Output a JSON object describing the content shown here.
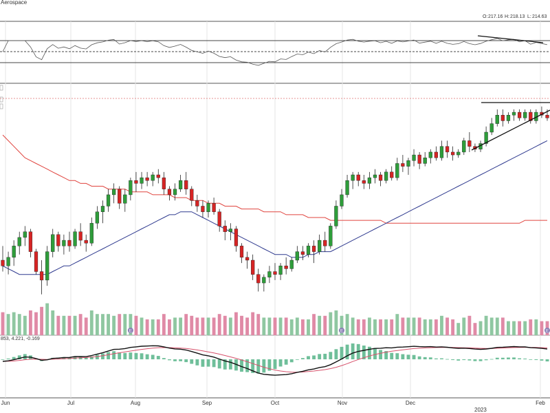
{
  "header": {
    "sector": "Aerospace",
    "ohlc": {
      "open_label": "O:",
      "open": "217.16",
      "high_label": "H:",
      "high": "218.13",
      "low_label": "L:",
      "low": "214.63"
    }
  },
  "macd_readout": "853, 4.221, -0.169",
  "earnings_marker": "E",
  "x_axis": {
    "months": [
      "Jun",
      "Jul",
      "Aug",
      "Sep",
      "Oct",
      "Nov",
      "Dec",
      "Feb"
    ],
    "year": "2023"
  },
  "colors": {
    "up": "#2e9d3a",
    "down": "#d62424",
    "sma50": "#2f3a8f",
    "sma200": "#e0443e",
    "macd": "#111111",
    "signal": "#d6506a",
    "hist": "#6fbf9a",
    "vol_up": "#8fc7a1",
    "vol_down": "#e08aa6"
  },
  "chart_data": {
    "type": "candlestick",
    "panels": [
      "rsi",
      "price",
      "volume",
      "macd"
    ],
    "price_ylim": [
      150,
      225
    ],
    "candles": [
      {
        "o": 165,
        "h": 170,
        "l": 161,
        "c": 163
      },
      {
        "o": 163,
        "h": 168,
        "l": 160,
        "c": 166
      },
      {
        "o": 166,
        "h": 172,
        "l": 163,
        "c": 170
      },
      {
        "o": 170,
        "h": 175,
        "l": 167,
        "c": 173
      },
      {
        "o": 173,
        "h": 177,
        "l": 170,
        "c": 175
      },
      {
        "o": 175,
        "h": 176,
        "l": 166,
        "c": 168
      },
      {
        "o": 168,
        "h": 169,
        "l": 160,
        "c": 161
      },
      {
        "o": 161,
        "h": 165,
        "l": 153,
        "c": 158
      },
      {
        "o": 158,
        "h": 170,
        "l": 156,
        "c": 168
      },
      {
        "o": 168,
        "h": 176,
        "l": 166,
        "c": 174
      },
      {
        "o": 174,
        "h": 175,
        "l": 168,
        "c": 170
      },
      {
        "o": 170,
        "h": 174,
        "l": 167,
        "c": 172
      },
      {
        "o": 172,
        "h": 175,
        "l": 168,
        "c": 170
      },
      {
        "o": 170,
        "h": 176,
        "l": 169,
        "c": 175
      },
      {
        "o": 175,
        "h": 178,
        "l": 170,
        "c": 172
      },
      {
        "o": 172,
        "h": 174,
        "l": 168,
        "c": 171
      },
      {
        "o": 171,
        "h": 180,
        "l": 170,
        "c": 178
      },
      {
        "o": 178,
        "h": 184,
        "l": 176,
        "c": 182
      },
      {
        "o": 182,
        "h": 186,
        "l": 178,
        "c": 184
      },
      {
        "o": 184,
        "h": 190,
        "l": 182,
        "c": 188
      },
      {
        "o": 188,
        "h": 192,
        "l": 185,
        "c": 190
      },
      {
        "o": 190,
        "h": 191,
        "l": 183,
        "c": 185
      },
      {
        "o": 185,
        "h": 190,
        "l": 182,
        "c": 188
      },
      {
        "o": 188,
        "h": 194,
        "l": 186,
        "c": 193
      },
      {
        "o": 193,
        "h": 196,
        "l": 189,
        "c": 192
      },
      {
        "o": 192,
        "h": 196,
        "l": 190,
        "c": 194
      },
      {
        "o": 194,
        "h": 196,
        "l": 191,
        "c": 193
      },
      {
        "o": 193,
        "h": 196,
        "l": 191,
        "c": 195
      },
      {
        "o": 195,
        "h": 197,
        "l": 192,
        "c": 194
      },
      {
        "o": 194,
        "h": 196,
        "l": 188,
        "c": 190
      },
      {
        "o": 190,
        "h": 191,
        "l": 186,
        "c": 188
      },
      {
        "o": 188,
        "h": 192,
        "l": 186,
        "c": 190
      },
      {
        "o": 190,
        "h": 195,
        "l": 189,
        "c": 193
      },
      {
        "o": 193,
        "h": 196,
        "l": 188,
        "c": 190
      },
      {
        "o": 190,
        "h": 191,
        "l": 184,
        "c": 186
      },
      {
        "o": 186,
        "h": 188,
        "l": 182,
        "c": 184
      },
      {
        "o": 184,
        "h": 186,
        "l": 180,
        "c": 182
      },
      {
        "o": 182,
        "h": 186,
        "l": 180,
        "c": 185
      },
      {
        "o": 185,
        "h": 187,
        "l": 181,
        "c": 182
      },
      {
        "o": 182,
        "h": 183,
        "l": 175,
        "c": 177
      },
      {
        "o": 177,
        "h": 179,
        "l": 172,
        "c": 175
      },
      {
        "o": 175,
        "h": 178,
        "l": 172,
        "c": 176
      },
      {
        "o": 176,
        "h": 177,
        "l": 168,
        "c": 170
      },
      {
        "o": 170,
        "h": 171,
        "l": 164,
        "c": 166
      },
      {
        "o": 166,
        "h": 168,
        "l": 162,
        "c": 165
      },
      {
        "o": 165,
        "h": 167,
        "l": 158,
        "c": 160
      },
      {
        "o": 160,
        "h": 162,
        "l": 154,
        "c": 157
      },
      {
        "o": 157,
        "h": 160,
        "l": 154,
        "c": 159
      },
      {
        "o": 159,
        "h": 163,
        "l": 157,
        "c": 161
      },
      {
        "o": 161,
        "h": 164,
        "l": 158,
        "c": 160
      },
      {
        "o": 160,
        "h": 164,
        "l": 158,
        "c": 163
      },
      {
        "o": 163,
        "h": 166,
        "l": 160,
        "c": 162
      },
      {
        "o": 162,
        "h": 166,
        "l": 161,
        "c": 165
      },
      {
        "o": 165,
        "h": 170,
        "l": 164,
        "c": 168
      },
      {
        "o": 168,
        "h": 170,
        "l": 165,
        "c": 167
      },
      {
        "o": 167,
        "h": 171,
        "l": 166,
        "c": 170
      },
      {
        "o": 170,
        "h": 172,
        "l": 164,
        "c": 168
      },
      {
        "o": 168,
        "h": 174,
        "l": 167,
        "c": 172
      },
      {
        "o": 172,
        "h": 175,
        "l": 168,
        "c": 170
      },
      {
        "o": 170,
        "h": 178,
        "l": 169,
        "c": 177
      },
      {
        "o": 177,
        "h": 186,
        "l": 176,
        "c": 184
      },
      {
        "o": 184,
        "h": 190,
        "l": 183,
        "c": 188
      },
      {
        "o": 188,
        "h": 195,
        "l": 187,
        "c": 193
      },
      {
        "o": 193,
        "h": 196,
        "l": 190,
        "c": 195
      },
      {
        "o": 195,
        "h": 196,
        "l": 191,
        "c": 193
      },
      {
        "o": 193,
        "h": 195,
        "l": 190,
        "c": 192
      },
      {
        "o": 192,
        "h": 196,
        "l": 190,
        "c": 194
      },
      {
        "o": 194,
        "h": 197,
        "l": 192,
        "c": 195
      },
      {
        "o": 195,
        "h": 196,
        "l": 191,
        "c": 193
      },
      {
        "o": 193,
        "h": 197,
        "l": 192,
        "c": 196
      },
      {
        "o": 196,
        "h": 198,
        "l": 193,
        "c": 194
      },
      {
        "o": 194,
        "h": 201,
        "l": 193,
        "c": 199
      },
      {
        "o": 199,
        "h": 202,
        "l": 196,
        "c": 198
      },
      {
        "o": 198,
        "h": 201,
        "l": 195,
        "c": 200
      },
      {
        "o": 200,
        "h": 204,
        "l": 198,
        "c": 202
      },
      {
        "o": 202,
        "h": 203,
        "l": 197,
        "c": 199
      },
      {
        "o": 199,
        "h": 203,
        "l": 198,
        "c": 201
      },
      {
        "o": 201,
        "h": 204,
        "l": 199,
        "c": 203
      },
      {
        "o": 203,
        "h": 205,
        "l": 200,
        "c": 201
      },
      {
        "o": 201,
        "h": 207,
        "l": 200,
        "c": 205
      },
      {
        "o": 205,
        "h": 207,
        "l": 201,
        "c": 203
      },
      {
        "o": 203,
        "h": 205,
        "l": 200,
        "c": 202
      },
      {
        "o": 202,
        "h": 204,
        "l": 201,
        "c": 203
      },
      {
        "o": 203,
        "h": 208,
        "l": 202,
        "c": 207
      },
      {
        "o": 207,
        "h": 210,
        "l": 203,
        "c": 205
      },
      {
        "o": 205,
        "h": 206,
        "l": 203,
        "c": 204
      },
      {
        "o": 204,
        "h": 207,
        "l": 203,
        "c": 206
      },
      {
        "o": 206,
        "h": 212,
        "l": 205,
        "c": 210
      },
      {
        "o": 210,
        "h": 215,
        "l": 209,
        "c": 213
      },
      {
        "o": 213,
        "h": 218,
        "l": 212,
        "c": 216
      },
      {
        "o": 216,
        "h": 218,
        "l": 212,
        "c": 214
      },
      {
        "o": 214,
        "h": 217,
        "l": 213,
        "c": 216
      },
      {
        "o": 216,
        "h": 218,
        "l": 214,
        "c": 217
      },
      {
        "o": 217,
        "h": 218,
        "l": 214,
        "c": 215
      },
      {
        "o": 215,
        "h": 218,
        "l": 214,
        "c": 217
      },
      {
        "o": 217,
        "h": 218,
        "l": 213,
        "c": 214
      },
      {
        "o": 214,
        "h": 218,
        "l": 213,
        "c": 217
      },
      {
        "o": 217,
        "h": 219,
        "l": 215,
        "c": 216
      },
      {
        "o": 216,
        "h": 218,
        "l": 214,
        "c": 215
      }
    ],
    "sma50": [
      163,
      162,
      161,
      160,
      160,
      160,
      160,
      160,
      160,
      161,
      162,
      163,
      163,
      164,
      165,
      166,
      167,
      168,
      169,
      170,
      171,
      172,
      173,
      174,
      175,
      176,
      177,
      178,
      179,
      180,
      181,
      181,
      182,
      182,
      182,
      181,
      180,
      179,
      178,
      177,
      176,
      175,
      174,
      173,
      172,
      171,
      170,
      169,
      168,
      167,
      167,
      167,
      166,
      166,
      166,
      167,
      167,
      168,
      168,
      168,
      169,
      170,
      171,
      172,
      173,
      174,
      175,
      176,
      177,
      178,
      179,
      180,
      181,
      182,
      183,
      184,
      185,
      186,
      187,
      188,
      189,
      190,
      191,
      192,
      193,
      194,
      195,
      196,
      197,
      198,
      199,
      200,
      201,
      202,
      203,
      204,
      205,
      206,
      207
    ],
    "sma200": [
      209,
      207,
      205,
      203,
      201,
      200,
      199,
      198,
      197,
      196,
      195,
      194,
      193,
      193,
      192,
      192,
      191,
      191,
      191,
      190,
      190,
      190,
      190,
      189,
      189,
      189,
      189,
      188,
      188,
      188,
      188,
      187,
      187,
      187,
      186,
      186,
      186,
      185,
      185,
      185,
      184,
      184,
      184,
      183,
      183,
      183,
      183,
      182,
      182,
      182,
      182,
      181,
      181,
      181,
      181,
      180,
      180,
      180,
      180,
      179,
      179,
      179,
      179,
      179,
      179,
      179,
      179,
      179,
      179,
      178,
      178,
      178,
      178,
      178,
      178,
      178,
      178,
      178,
      178,
      178,
      178,
      178,
      178,
      178,
      178,
      178,
      178,
      178,
      178,
      178,
      178,
      178,
      178,
      178,
      179,
      179,
      179,
      179,
      179
    ],
    "annotations": [
      "resistance line ~217",
      "rising support trendline"
    ]
  }
}
